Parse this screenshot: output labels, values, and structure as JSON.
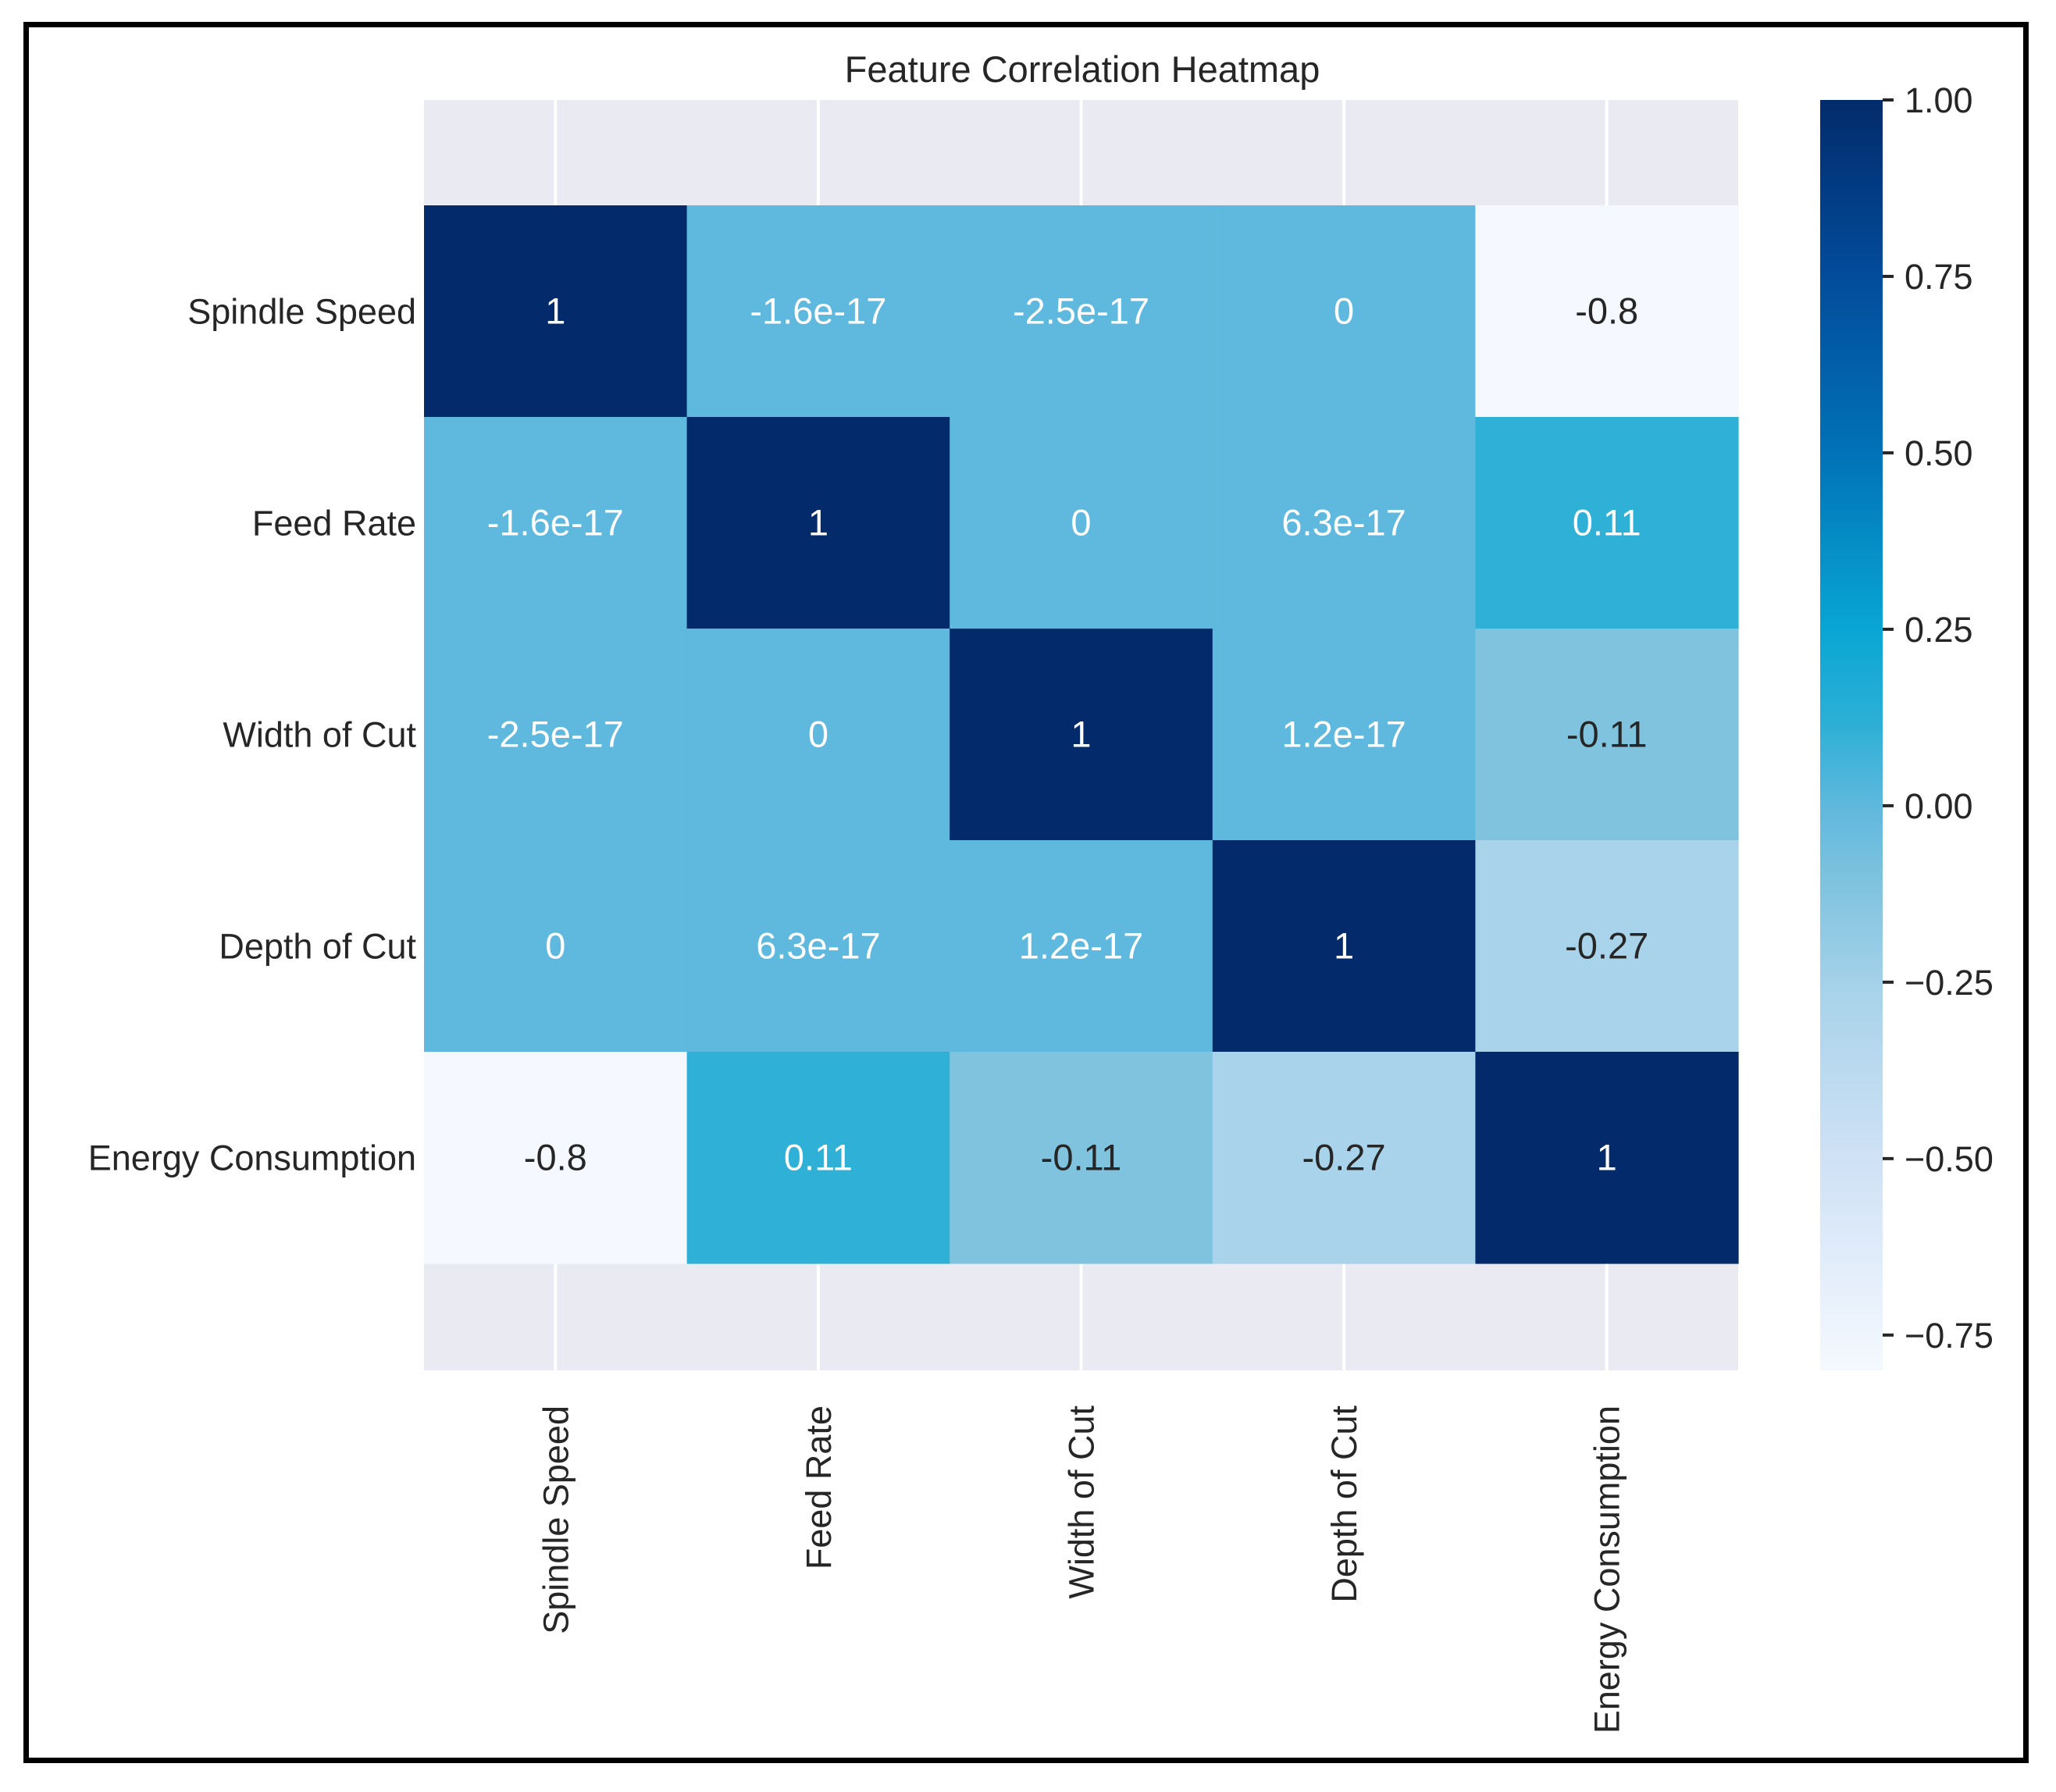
{
  "chart_data": {
    "type": "heatmap",
    "title": "Feature Correlation Heatmap",
    "x_labels": [
      "Spindle Speed",
      "Feed Rate",
      "Width of Cut",
      "Depth of Cut",
      "Energy Consumption"
    ],
    "y_labels": [
      "Spindle Speed",
      "Feed Rate",
      "Width of Cut",
      "Depth of Cut",
      "Energy Consumption"
    ],
    "values": [
      [
        1,
        -1.6e-17,
        -2.5e-17,
        0,
        -0.8
      ],
      [
        -1.6e-17,
        1,
        0,
        6.3e-17,
        0.11
      ],
      [
        -2.5e-17,
        0,
        1,
        1.2e-17,
        -0.11
      ],
      [
        0,
        6.3e-17,
        1.2e-17,
        1,
        -0.27
      ],
      [
        -0.8,
        0.11,
        -0.11,
        -0.27,
        1
      ]
    ],
    "annotations": [
      [
        "1",
        "-1.6e-17",
        "-2.5e-17",
        "0",
        "-0.8"
      ],
      [
        "-1.6e-17",
        "1",
        "0",
        "6.3e-17",
        "0.11"
      ],
      [
        "-2.5e-17",
        "0",
        "1",
        "1.2e-17",
        "-0.11"
      ],
      [
        "0",
        "6.3e-17",
        "1.2e-17",
        "1",
        "-0.27"
      ],
      [
        "-0.8",
        "0.11",
        "-0.11",
        "-0.27",
        "1"
      ]
    ],
    "colormap": "Blues-like (light to dark navy)",
    "vmin": -0.8,
    "vmax": 1.0,
    "colorbar": {
      "ticks": [
        1.0,
        0.75,
        0.5,
        0.25,
        0.0,
        -0.25,
        -0.5,
        -0.75
      ],
      "tick_labels": [
        "1.00",
        "0.75",
        "0.50",
        "0.25",
        "0.00",
        "−0.25",
        "−0.50",
        "−0.75"
      ]
    },
    "colorbar_stops": [
      {
        "value": -0.8,
        "color": "#f5f9ff"
      },
      {
        "value": -0.5,
        "color": "#cfe1f5"
      },
      {
        "value": -0.27,
        "color": "#a9d3ea"
      },
      {
        "value": -0.11,
        "color": "#7fc3df"
      },
      {
        "value": 0.0,
        "color": "#5fb8dd"
      },
      {
        "value": 0.11,
        "color": "#2fb0d6"
      },
      {
        "value": 0.25,
        "color": "#08a6d4"
      },
      {
        "value": 0.5,
        "color": "#0172b7"
      },
      {
        "value": 0.75,
        "color": "#024c9b"
      },
      {
        "value": 1.0,
        "color": "#032b6b"
      }
    ],
    "grid": true,
    "background": "#eaeaf2"
  }
}
